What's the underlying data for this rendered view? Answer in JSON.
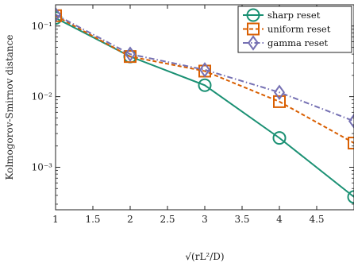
{
  "chart_data": {
    "type": "line",
    "title": "",
    "xlabel": "√(rL²/D)",
    "ylabel": "Kolmogorov-Smirnov distance",
    "xlim": [
      1,
      5
    ],
    "ylim": [
      0.00025,
      0.2
    ],
    "yscale": "log",
    "x_ticks": [
      1,
      1.5,
      2,
      2.5,
      3,
      3.5,
      4,
      4.5
    ],
    "x_tick_labels": [
      "1",
      "1.5",
      "2",
      "2.5",
      "3",
      "3.5",
      "4",
      "4.5"
    ],
    "y_ticks": [
      0.001,
      0.01,
      0.1
    ],
    "y_tick_labels": [
      "10⁻³",
      "10⁻²",
      "10⁻¹"
    ],
    "grid": false,
    "legend_position": "top-right",
    "x": [
      1,
      2,
      3,
      4,
      5
    ],
    "series": [
      {
        "name": "sharp reset",
        "color": "#1a9073",
        "marker": "circle",
        "line_style": "solid",
        "values": [
          0.13,
          0.037,
          0.0145,
          0.0026,
          0.00038
        ]
      },
      {
        "name": "uniform reset",
        "color": "#d95f02",
        "marker": "square",
        "line_style": "dashed",
        "values": [
          0.14,
          0.037,
          0.023,
          0.0085,
          0.0022
        ]
      },
      {
        "name": "gamma reset",
        "color": "#7570b3",
        "marker": "diamond",
        "line_style": "dashdot",
        "values": [
          0.145,
          0.04,
          0.024,
          0.0115,
          0.0045
        ]
      }
    ]
  }
}
